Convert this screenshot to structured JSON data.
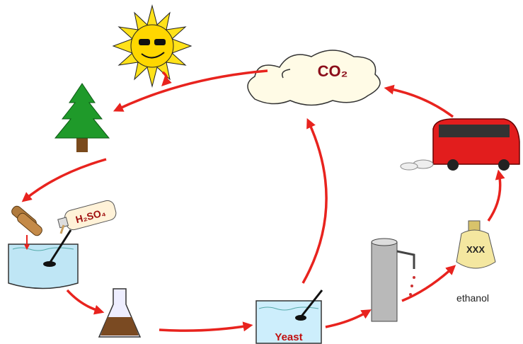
{
  "labels": {
    "co2": "CO₂",
    "acid": "H₂SO₄",
    "bottle": "XXX",
    "yeast": "Yeast",
    "ethanol": "ethanol"
  }
}
